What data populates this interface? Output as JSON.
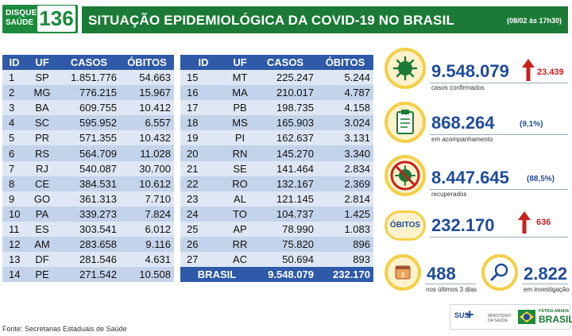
{
  "logo": {
    "line1": "DISQUE",
    "line2": "SAÚDE",
    "number": "136"
  },
  "header": {
    "title": "SITUAÇÃO EPIDEMIOLÓGICA DA COVID-19 NO BRASIL",
    "date": "(08/02 às 17h30)"
  },
  "table": {
    "columns": [
      "ID",
      "UF",
      "CASOS",
      "ÓBITOS"
    ],
    "left": [
      [
        "1",
        "SP",
        "1.851.776",
        "54.663"
      ],
      [
        "2",
        "MG",
        "776.215",
        "15.967"
      ],
      [
        "3",
        "BA",
        "609.755",
        "10.412"
      ],
      [
        "4",
        "SC",
        "595.952",
        "6.557"
      ],
      [
        "5",
        "PR",
        "571.355",
        "10.432"
      ],
      [
        "6",
        "RS",
        "564.709",
        "11.028"
      ],
      [
        "7",
        "RJ",
        "540.087",
        "30.700"
      ],
      [
        "8",
        "CE",
        "384.531",
        "10.612"
      ],
      [
        "9",
        "GO",
        "361.313",
        "7.710"
      ],
      [
        "10",
        "PA",
        "339.273",
        "7.824"
      ],
      [
        "11",
        "ES",
        "303.541",
        "6.012"
      ],
      [
        "12",
        "AM",
        "283.658",
        "9.116"
      ],
      [
        "13",
        "DF",
        "281.546",
        "4.631"
      ],
      [
        "14",
        "PE",
        "271.542",
        "10.508"
      ]
    ],
    "right": [
      [
        "15",
        "MT",
        "225.247",
        "5.244"
      ],
      [
        "16",
        "MA",
        "210.017",
        "4.787"
      ],
      [
        "17",
        "PB",
        "198.735",
        "4.158"
      ],
      [
        "18",
        "MS",
        "165.903",
        "3.024"
      ],
      [
        "19",
        "PI",
        "162.637",
        "3.131"
      ],
      [
        "20",
        "RN",
        "145.270",
        "3.340"
      ],
      [
        "21",
        "SE",
        "141.464",
        "2.834"
      ],
      [
        "22",
        "RO",
        "132.167",
        "2.369"
      ],
      [
        "23",
        "AL",
        "121.145",
        "2.814"
      ],
      [
        "24",
        "TO",
        "104.737",
        "1.425"
      ],
      [
        "25",
        "AP",
        "78.990",
        "1.083"
      ],
      [
        "26",
        "RR",
        "75.820",
        "896"
      ],
      [
        "27",
        "AC",
        "50.694",
        "893"
      ]
    ],
    "total": {
      "label": "BRASIL",
      "cases": "9.548.079",
      "deaths": "232.170"
    }
  },
  "cards": {
    "confirmed": {
      "value": "9.548.079",
      "delta": "23.439",
      "label": "casos confirmados",
      "icon": "virus-icon"
    },
    "monitoring": {
      "value": "868.264",
      "pct": "(9,1%)",
      "label": "em acompanhamento",
      "icon": "clipboard-icon"
    },
    "recovered": {
      "value": "8.447.645",
      "pct": "(88,5%)",
      "label": "recuperados",
      "icon": "virus-crossed-icon"
    },
    "deaths": {
      "badge": "ÓBITOS",
      "value": "232.170",
      "delta": "636"
    },
    "recent": {
      "value": "488",
      "label": "nos últimos 3 dias",
      "icon": "calendar-icon"
    },
    "investigation": {
      "value": "2.822",
      "label": "em investigação",
      "icon": "magnifier-icon"
    }
  },
  "footer": {
    "source": "Fonte: Secretarias Estaduais de Saúde",
    "sus": "SUS",
    "ministerio": "MINISTÉRIO DA SAÚDE",
    "patria": "PÁTRIA AMADA",
    "brasil": "BRASIL"
  },
  "colors": {
    "green": "#1b7a36",
    "blue": "#2e5aa8",
    "accent_yellow": "#f3cf47",
    "red": "#c8201f"
  }
}
